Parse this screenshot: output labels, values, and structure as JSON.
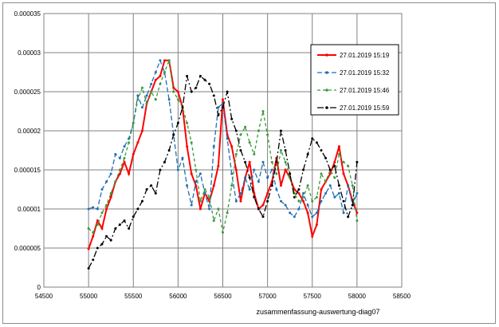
{
  "chart_data": {
    "type": "line",
    "title": "",
    "xlabel": "zusammenfassung-auswertung-diag07",
    "ylabel": "",
    "xlim": [
      54500,
      58500
    ],
    "ylim": [
      0,
      3.5e-05
    ],
    "x_ticks": [
      "54500",
      "55000",
      "55500",
      "56000",
      "56500",
      "57000",
      "57500",
      "58000",
      "58500"
    ],
    "y_ticks": [
      "0",
      "0.000005",
      "0.00001",
      "0.000015",
      "0.00002",
      "0.000025",
      "0.00003",
      "0.000035"
    ],
    "grid": true,
    "legend_position": "top-right",
    "series": [
      {
        "name": "27.01.2019 15:19",
        "color": "#ff0000",
        "dash": "solid",
        "points": [
          [
            55000,
            4.9e-06
          ],
          [
            55050,
            6.5e-06
          ],
          [
            55100,
            8.5e-06
          ],
          [
            55150,
            7.5e-06
          ],
          [
            55200,
            1e-05
          ],
          [
            55250,
            1.15e-05
          ],
          [
            55300,
            1.35e-05
          ],
          [
            55350,
            1.45e-05
          ],
          [
            55400,
            1.6e-05
          ],
          [
            55450,
            1.45e-05
          ],
          [
            55500,
            1.7e-05
          ],
          [
            55550,
            1.85e-05
          ],
          [
            55600,
            2e-05
          ],
          [
            55650,
            2.35e-05
          ],
          [
            55700,
            2.5e-05
          ],
          [
            55750,
            2.65e-05
          ],
          [
            55800,
            2.7e-05
          ],
          [
            55850,
            2.9e-05
          ],
          [
            55900,
            2.9e-05
          ],
          [
            55950,
            2.55e-05
          ],
          [
            56000,
            2.5e-05
          ],
          [
            56050,
            2.3e-05
          ],
          [
            56100,
            1.8e-05
          ],
          [
            56150,
            1.45e-05
          ],
          [
            56200,
            1.3e-05
          ],
          [
            56250,
            1e-05
          ],
          [
            56300,
            1.2e-05
          ],
          [
            56350,
            1.1e-05
          ],
          [
            56400,
            1.3e-05
          ],
          [
            56450,
            1.55e-05
          ],
          [
            56500,
            2.4e-05
          ],
          [
            56550,
            1.95e-05
          ],
          [
            56600,
            1.8e-05
          ],
          [
            56650,
            1.5e-05
          ],
          [
            56700,
            1.1e-05
          ],
          [
            56750,
            1.4e-05
          ],
          [
            56800,
            1.6e-05
          ],
          [
            56850,
            1.2e-05
          ],
          [
            56900,
            1e-05
          ],
          [
            56950,
            1.05e-05
          ],
          [
            57000,
            1.2e-05
          ],
          [
            57050,
            1.35e-05
          ],
          [
            57100,
            1.65e-05
          ],
          [
            57150,
            1.3e-05
          ],
          [
            57200,
            1.5e-05
          ],
          [
            57250,
            1.4e-05
          ],
          [
            57300,
            1.25e-05
          ],
          [
            57350,
            1.2e-05
          ],
          [
            57400,
            1.1e-05
          ],
          [
            57450,
            9.5e-06
          ],
          [
            57500,
            6.5e-06
          ],
          [
            57550,
            8e-06
          ],
          [
            57600,
            1.25e-05
          ],
          [
            57650,
            1.35e-05
          ],
          [
            57700,
            1.45e-05
          ],
          [
            57750,
            1.6e-05
          ],
          [
            57800,
            1.8e-05
          ],
          [
            57850,
            1.45e-05
          ],
          [
            57900,
            1.3e-05
          ],
          [
            57950,
            1.1e-05
          ],
          [
            58000,
            9.5e-06
          ]
        ]
      },
      {
        "name": "27.01.2019 15:32",
        "color": "#1f6fb4",
        "dash": "6,3",
        "points": [
          [
            55000,
            1e-05
          ],
          [
            55050,
            1.02e-05
          ],
          [
            55100,
            1e-05
          ],
          [
            55150,
            1.25e-05
          ],
          [
            55200,
            1.35e-05
          ],
          [
            55250,
            1.45e-05
          ],
          [
            55300,
            1.7e-05
          ],
          [
            55350,
            1.65e-05
          ],
          [
            55400,
            1.8e-05
          ],
          [
            55450,
            1.9e-05
          ],
          [
            55500,
            2.1e-05
          ],
          [
            55550,
            2.45e-05
          ],
          [
            55600,
            2.3e-05
          ],
          [
            55650,
            2.45e-05
          ],
          [
            55700,
            2.6e-05
          ],
          [
            55750,
            2.75e-05
          ],
          [
            55800,
            2.9e-05
          ],
          [
            55850,
            2.75e-05
          ],
          [
            55900,
            2.4e-05
          ],
          [
            55950,
            1.95e-05
          ],
          [
            56000,
            1.5e-05
          ],
          [
            56050,
            1.65e-05
          ],
          [
            56100,
            1.3e-05
          ],
          [
            56150,
            1.05e-05
          ],
          [
            56200,
            1.35e-05
          ],
          [
            56250,
            1.45e-05
          ],
          [
            56300,
            1.2e-05
          ],
          [
            56350,
            1e-05
          ],
          [
            56400,
            1.8e-05
          ],
          [
            56450,
            2.3e-05
          ],
          [
            56500,
            2.35e-05
          ],
          [
            56550,
            1.9e-05
          ],
          [
            56600,
            1.45e-05
          ],
          [
            56650,
            1.1e-05
          ],
          [
            56700,
            1.2e-05
          ],
          [
            56750,
            1.4e-05
          ],
          [
            56800,
            1.25e-05
          ],
          [
            56850,
            1.5e-05
          ],
          [
            56900,
            1.35e-05
          ],
          [
            56950,
            1.6e-05
          ],
          [
            57000,
            1.4e-05
          ],
          [
            57050,
            1.5e-05
          ],
          [
            57100,
            1.25e-05
          ],
          [
            57150,
            1.1e-05
          ],
          [
            57200,
            1.05e-05
          ],
          [
            57250,
            9.5e-06
          ],
          [
            57300,
            9e-06
          ],
          [
            57350,
            1e-05
          ],
          [
            57400,
            1.2e-05
          ],
          [
            57450,
            1.05e-05
          ],
          [
            57500,
            9e-06
          ],
          [
            57550,
            9.5e-06
          ],
          [
            57600,
            1.1e-05
          ],
          [
            57650,
            1.2e-05
          ],
          [
            57700,
            1.3e-05
          ],
          [
            57750,
            1.15e-05
          ],
          [
            57800,
            1.2e-05
          ],
          [
            57850,
            9.5e-06
          ],
          [
            57900,
            1.3e-05
          ],
          [
            57950,
            1.05e-05
          ],
          [
            58000,
            1.2e-05
          ]
        ]
      },
      {
        "name": "27.01.2019 15:46",
        "color": "#3a9a3a",
        "dash": "4,3",
        "points": [
          [
            55000,
            7.5e-06
          ],
          [
            55050,
            7e-06
          ],
          [
            55100,
            8e-06
          ],
          [
            55150,
            9.5e-06
          ],
          [
            55200,
            1.05e-05
          ],
          [
            55250,
            1.2e-05
          ],
          [
            55300,
            1.35e-05
          ],
          [
            55350,
            1.5e-05
          ],
          [
            55400,
            1.65e-05
          ],
          [
            55450,
            1.85e-05
          ],
          [
            55500,
            2.1e-05
          ],
          [
            55550,
            2.4e-05
          ],
          [
            55600,
            2.55e-05
          ],
          [
            55650,
            2.35e-05
          ],
          [
            55700,
            2.5e-05
          ],
          [
            55750,
            2.4e-05
          ],
          [
            55800,
            2.6e-05
          ],
          [
            55850,
            2.75e-05
          ],
          [
            55900,
            2.9e-05
          ],
          [
            55950,
            2.5e-05
          ],
          [
            56000,
            2.4e-05
          ],
          [
            56050,
            2.3e-05
          ],
          [
            56100,
            2.1e-05
          ],
          [
            56150,
            1.85e-05
          ],
          [
            56200,
            1.5e-05
          ],
          [
            56250,
            1.1e-05
          ],
          [
            56300,
            1.25e-05
          ],
          [
            56350,
            1.15e-05
          ],
          [
            56400,
            8.5e-06
          ],
          [
            56450,
            1e-05
          ],
          [
            56500,
            7e-06
          ],
          [
            56550,
            9.5e-06
          ],
          [
            56600,
            1.3e-05
          ],
          [
            56650,
            1.7e-05
          ],
          [
            56700,
            1.95e-05
          ],
          [
            56750,
            2.05e-05
          ],
          [
            56800,
            1.85e-05
          ],
          [
            56850,
            1.7e-05
          ],
          [
            56900,
            2e-05
          ],
          [
            56950,
            2.25e-05
          ],
          [
            57000,
            1.95e-05
          ],
          [
            57050,
            1.6e-05
          ],
          [
            57100,
            1.45e-05
          ],
          [
            57150,
            1.75e-05
          ],
          [
            57200,
            1.6e-05
          ],
          [
            57250,
            1.4e-05
          ],
          [
            57300,
            1.2e-05
          ],
          [
            57350,
            1.1e-05
          ],
          [
            57400,
            1.15e-05
          ],
          [
            57450,
            1.3e-05
          ],
          [
            57500,
            1.1e-05
          ],
          [
            57550,
            1.15e-05
          ],
          [
            57600,
            1.45e-05
          ],
          [
            57650,
            1.35e-05
          ],
          [
            57700,
            1.5e-05
          ],
          [
            57750,
            1.4e-05
          ],
          [
            57800,
            1.7e-05
          ],
          [
            57850,
            1.6e-05
          ],
          [
            57900,
            1.55e-05
          ],
          [
            57950,
            1.3e-05
          ],
          [
            58000,
            8.5e-06
          ]
        ]
      },
      {
        "name": "27.01.2019 15:59",
        "color": "#000000",
        "dash": "8,3,2,3",
        "points": [
          [
            55000,
            2.4e-06
          ],
          [
            55050,
            3.5e-06
          ],
          [
            55100,
            5e-06
          ],
          [
            55150,
            5.5e-06
          ],
          [
            55200,
            6.5e-06
          ],
          [
            55250,
            6e-06
          ],
          [
            55300,
            7.5e-06
          ],
          [
            55350,
            8e-06
          ],
          [
            55400,
            8.5e-06
          ],
          [
            55450,
            7.5e-06
          ],
          [
            55500,
            9e-06
          ],
          [
            55550,
            1e-05
          ],
          [
            55600,
            1.1e-05
          ],
          [
            55650,
            1.25e-05
          ],
          [
            55700,
            1.3e-05
          ],
          [
            55750,
            1.2e-05
          ],
          [
            55800,
            1.5e-05
          ],
          [
            55850,
            1.6e-05
          ],
          [
            55900,
            1.75e-05
          ],
          [
            55950,
            1.95e-05
          ],
          [
            56000,
            2.1e-05
          ],
          [
            56050,
            2.3e-05
          ],
          [
            56100,
            2.7e-05
          ],
          [
            56150,
            2.5e-05
          ],
          [
            56200,
            2.55e-05
          ],
          [
            56250,
            2.7e-05
          ],
          [
            56300,
            2.65e-05
          ],
          [
            56350,
            2.6e-05
          ],
          [
            56400,
            2.45e-05
          ],
          [
            56450,
            2.2e-05
          ],
          [
            56500,
            2.3e-05
          ],
          [
            56550,
            2.5e-05
          ],
          [
            56600,
            2.15e-05
          ],
          [
            56650,
            2e-05
          ],
          [
            56700,
            1.75e-05
          ],
          [
            56750,
            1.6e-05
          ],
          [
            56800,
            1.4e-05
          ],
          [
            56850,
            1.15e-05
          ],
          [
            56900,
            1e-05
          ],
          [
            56950,
            9e-06
          ],
          [
            57000,
            1.1e-05
          ],
          [
            57050,
            1.3e-05
          ],
          [
            57100,
            1.6e-05
          ],
          [
            57150,
            2e-05
          ],
          [
            57200,
            1.75e-05
          ],
          [
            57250,
            1.45e-05
          ],
          [
            57300,
            1.15e-05
          ],
          [
            57350,
            1.25e-05
          ],
          [
            57400,
            1.5e-05
          ],
          [
            57450,
            1.7e-05
          ],
          [
            57500,
            1.9e-05
          ],
          [
            57550,
            1.85e-05
          ],
          [
            57600,
            1.75e-05
          ],
          [
            57650,
            1.65e-05
          ],
          [
            57700,
            1.5e-05
          ],
          [
            57750,
            1.55e-05
          ],
          [
            57800,
            1.3e-05
          ],
          [
            57850,
            1.1e-05
          ],
          [
            57900,
            9e-06
          ],
          [
            57950,
            1.05e-05
          ],
          [
            58000,
            1.6e-05
          ]
        ]
      }
    ]
  }
}
